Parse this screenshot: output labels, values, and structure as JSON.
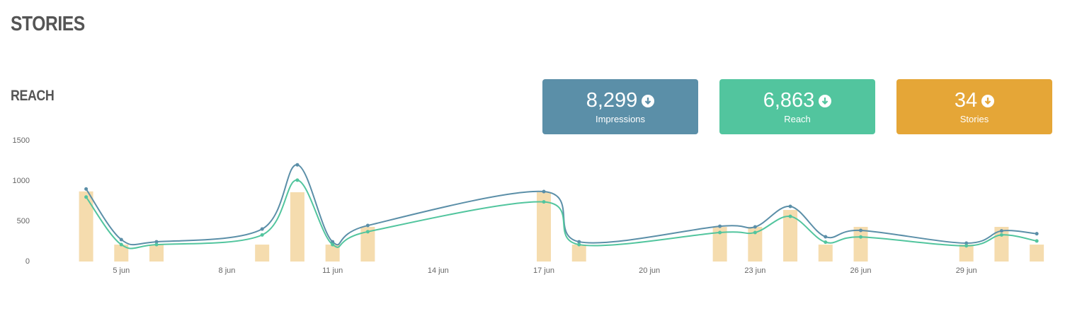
{
  "header": {
    "title": "STORIES",
    "subtitle": "REACH"
  },
  "cards": [
    {
      "value": "8,299",
      "label": "Impressions",
      "color": "#5b8fa8"
    },
    {
      "value": "6,863",
      "label": "Reach",
      "color": "#52c59e"
    },
    {
      "value": "34",
      "label": "Stories",
      "color": "#e5a637"
    }
  ],
  "chart_data": {
    "type": "line",
    "x": [
      4,
      5,
      6,
      9,
      10,
      11,
      12,
      17,
      18,
      22,
      23,
      24,
      25,
      26,
      29,
      30,
      31
    ],
    "series": [
      {
        "type": "bar",
        "color": "#f5dcae",
        "values": [
          870,
          210,
          210,
          210,
          860,
          210,
          430,
          860,
          210,
          430,
          430,
          640,
          210,
          430,
          210,
          430,
          210
        ]
      },
      {
        "type": "line",
        "color": "#5b8fa8",
        "values": [
          900,
          272,
          245,
          403,
          1200,
          245,
          447,
          868,
          245,
          438,
          430,
          684,
          307,
          386,
          228,
          380,
          345
        ]
      },
      {
        "type": "line",
        "color": "#52c59e",
        "values": [
          800,
          210,
          210,
          330,
          1010,
          210,
          370,
          740,
          210,
          360,
          360,
          560,
          240,
          305,
          195,
          330,
          255
        ]
      }
    ],
    "xlim": [
      2.5,
      31.5
    ],
    "xticks": [
      {
        "value": 5,
        "label": "5 jun"
      },
      {
        "value": 8,
        "label": "8 jun"
      },
      {
        "value": 11,
        "label": "11 jun"
      },
      {
        "value": 14,
        "label": "14 jun"
      },
      {
        "value": 17,
        "label": "17 jun"
      },
      {
        "value": 20,
        "label": "20 jun"
      },
      {
        "value": 23,
        "label": "23 jun"
      },
      {
        "value": 26,
        "label": "26 jun"
      },
      {
        "value": 29,
        "label": "29 jun"
      }
    ],
    "ylim": [
      0,
      1500
    ],
    "yticks": [
      0,
      500,
      1000,
      1500
    ],
    "grid": false
  }
}
